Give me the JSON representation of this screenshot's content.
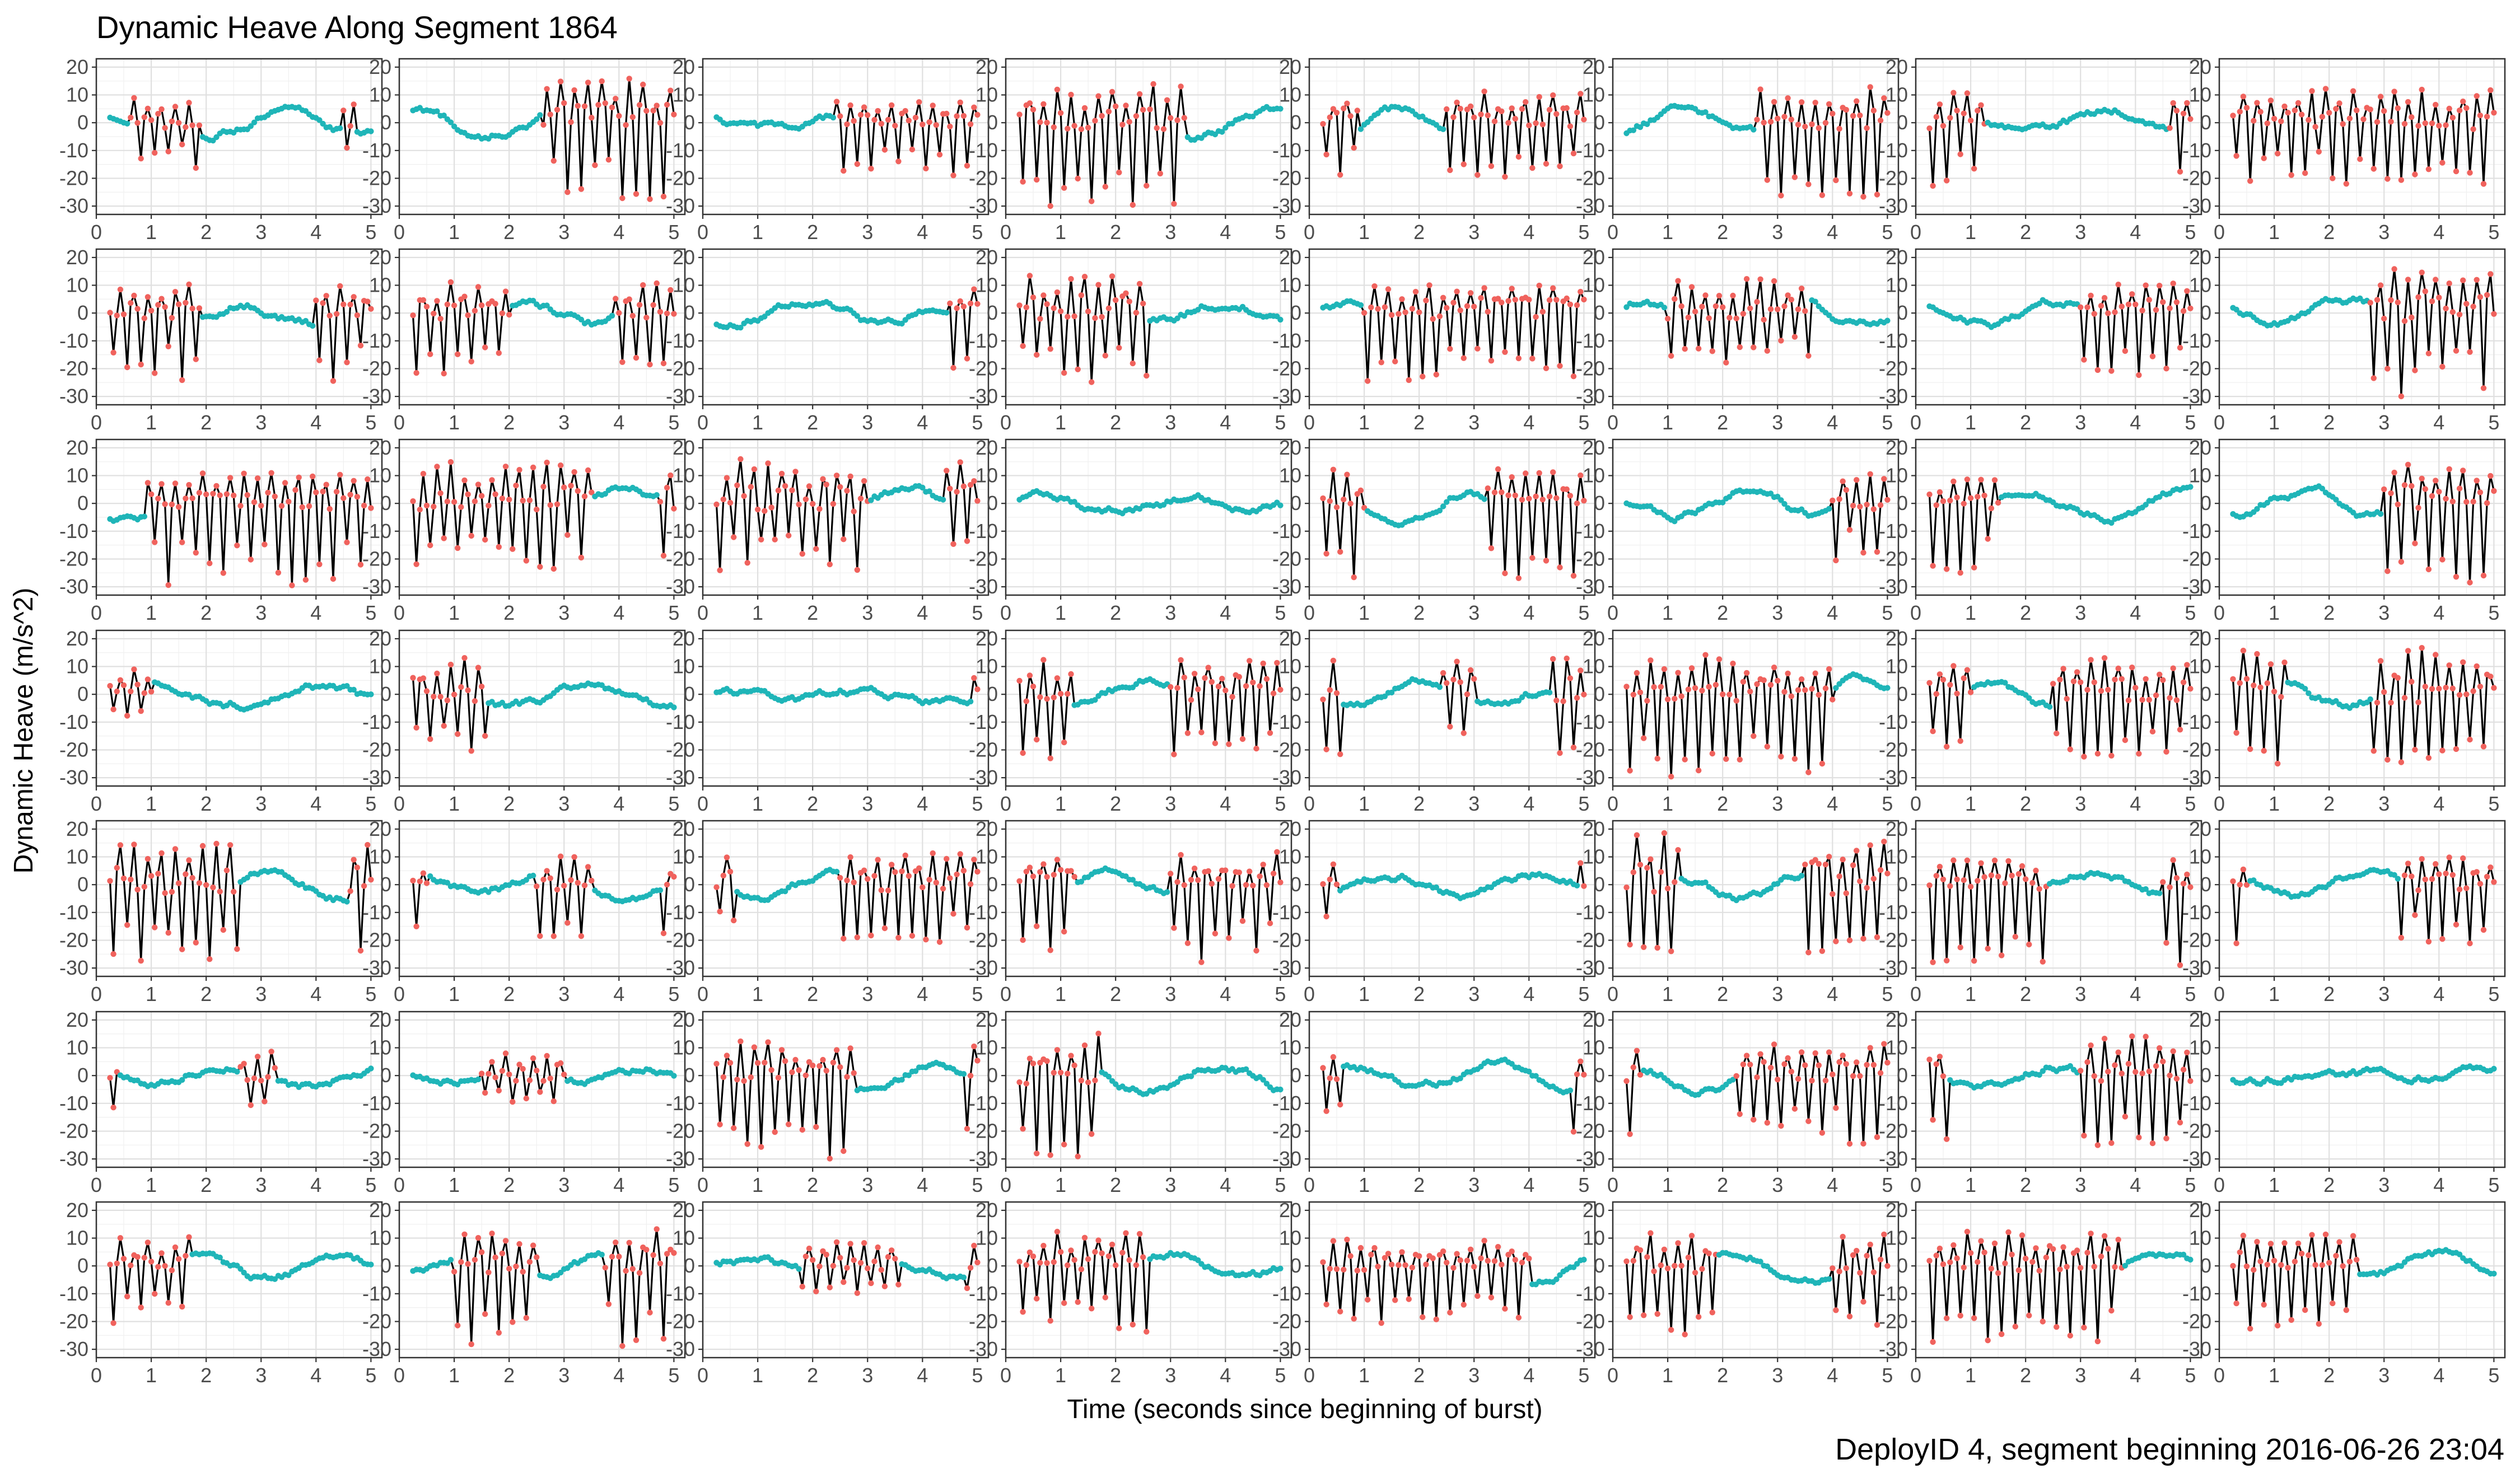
{
  "title": "Dynamic Heave Along Segment 1864",
  "caption": "DeployID 4, segment beginning 2016-06-26 23:04",
  "colors": {
    "calm": "#1fb5b8",
    "active": "#f0625d",
    "line": "#000000"
  },
  "chart_data": {
    "type": "line",
    "xlabel": "Time (seconds since beginning of burst)",
    "ylabel": "Dynamic Heave (m/s^2)",
    "xlim": [
      0,
      5.2
    ],
    "ylim": [
      -33,
      23
    ],
    "x_ticks": [
      0,
      1,
      2,
      3,
      4,
      5
    ],
    "y_ticks": [
      20,
      10,
      0,
      -10,
      -20,
      -30
    ],
    "rows": 7,
    "cols": 8,
    "grid": true,
    "point_states": [
      "calm",
      "active"
    ],
    "sample_interval_s": 0.0625,
    "t_start": 0.25,
    "t_end": 5.0,
    "panels": [
      {
        "row": 1,
        "col": 1,
        "active_intervals": [
          [
            0.6,
            1.9
          ],
          [
            4.5,
            4.7
          ]
        ],
        "min": -17,
        "max": 12
      },
      {
        "row": 1,
        "col": 2,
        "active_intervals": [
          [
            2.6,
            5.0
          ]
        ],
        "min": -28,
        "max": 17
      },
      {
        "row": 1,
        "col": 3,
        "active_intervals": [
          [
            2.4,
            5.0
          ]
        ],
        "min": -19,
        "max": 8
      },
      {
        "row": 1,
        "col": 4,
        "active_intervals": [
          [
            0.25,
            3.3
          ]
        ],
        "min": -30,
        "max": 15
      },
      {
        "row": 1,
        "col": 5,
        "active_intervals": [
          [
            0.25,
            0.9
          ],
          [
            2.5,
            5.0
          ]
        ],
        "min": -20,
        "max": 14
      },
      {
        "row": 1,
        "col": 6,
        "active_intervals": [
          [
            2.6,
            5.0
          ]
        ],
        "min": -29,
        "max": 15
      },
      {
        "row": 1,
        "col": 7,
        "active_intervals": [
          [
            0.25,
            1.3
          ],
          [
            4.6,
            5.0
          ]
        ],
        "min": -25,
        "max": 13
      },
      {
        "row": 1,
        "col": 8,
        "active_intervals": [
          [
            0.25,
            5.0
          ]
        ],
        "min": -23,
        "max": 13
      },
      {
        "row": 2,
        "col": 1,
        "active_intervals": [
          [
            0.25,
            1.9
          ],
          [
            4.0,
            5.0
          ]
        ],
        "min": -25,
        "max": 11
      },
      {
        "row": 2,
        "col": 2,
        "active_intervals": [
          [
            0.25,
            2.0
          ],
          [
            3.9,
            5.0
          ]
        ],
        "min": -25,
        "max": 12
      },
      {
        "row": 2,
        "col": 3,
        "active_intervals": [
          [
            4.5,
            5.0
          ]
        ],
        "min": -22,
        "max": 10
      },
      {
        "row": 2,
        "col": 4,
        "active_intervals": [
          [
            0.25,
            2.6
          ]
        ],
        "min": -26,
        "max": 17
      },
      {
        "row": 2,
        "col": 5,
        "active_intervals": [
          [
            1.0,
            5.0
          ]
        ],
        "min": -26,
        "max": 13
      },
      {
        "row": 2,
        "col": 6,
        "active_intervals": [
          [
            1.0,
            3.6
          ]
        ],
        "min": -18,
        "max": 14
      },
      {
        "row": 2,
        "col": 7,
        "active_intervals": [
          [
            3.0,
            5.0
          ]
        ],
        "min": -27,
        "max": 12
      },
      {
        "row": 2,
        "col": 8,
        "active_intervals": [
          [
            2.7,
            5.0
          ]
        ],
        "min": -30,
        "max": 20
      },
      {
        "row": 3,
        "col": 1,
        "active_intervals": [
          [
            0.9,
            5.0
          ]
        ],
        "min": -30,
        "max": 12
      },
      {
        "row": 3,
        "col": 2,
        "active_intervals": [
          [
            0.25,
            3.5
          ],
          [
            4.7,
            5.0
          ]
        ],
        "min": -24,
        "max": 16
      },
      {
        "row": 3,
        "col": 3,
        "active_intervals": [
          [
            0.25,
            3.0
          ],
          [
            4.4,
            5.0
          ]
        ],
        "min": -25,
        "max": 17
      },
      {
        "row": 3,
        "col": 4,
        "active_intervals": [],
        "min": -8,
        "max": 9
      },
      {
        "row": 3,
        "col": 5,
        "active_intervals": [
          [
            0.25,
            1.0
          ],
          [
            3.2,
            5.0
          ]
        ],
        "min": -29,
        "max": 13
      },
      {
        "row": 3,
        "col": 6,
        "active_intervals": [
          [
            4.0,
            5.0
          ]
        ],
        "min": -21,
        "max": 14
      },
      {
        "row": 3,
        "col": 7,
        "active_intervals": [
          [
            0.25,
            1.5
          ]
        ],
        "min": -25,
        "max": 10
      },
      {
        "row": 3,
        "col": 8,
        "active_intervals": [
          [
            3.0,
            5.0
          ]
        ],
        "min": -30,
        "max": 16
      },
      {
        "row": 4,
        "col": 1,
        "active_intervals": [
          [
            0.25,
            1.0
          ]
        ],
        "min": -12,
        "max": 10
      },
      {
        "row": 4,
        "col": 2,
        "active_intervals": [
          [
            0.25,
            1.6
          ]
        ],
        "min": -22,
        "max": 15
      },
      {
        "row": 4,
        "col": 3,
        "active_intervals": [
          [
            4.9,
            5.0
          ]
        ],
        "min": -7,
        "max": 8
      },
      {
        "row": 4,
        "col": 4,
        "active_intervals": [
          [
            0.25,
            1.2
          ],
          [
            3.0,
            5.0
          ]
        ],
        "min": -26,
        "max": 15
      },
      {
        "row": 4,
        "col": 5,
        "active_intervals": [
          [
            0.25,
            0.6
          ],
          [
            2.4,
            3.0
          ],
          [
            4.4,
            5.0
          ]
        ],
        "min": -25,
        "max": 15
      },
      {
        "row": 4,
        "col": 6,
        "active_intervals": [
          [
            0.25,
            4.0
          ]
        ],
        "min": -30,
        "max": 15
      },
      {
        "row": 4,
        "col": 7,
        "active_intervals": [
          [
            0.25,
            1.0
          ],
          [
            2.5,
            5.0
          ]
        ],
        "min": -24,
        "max": 15
      },
      {
        "row": 4,
        "col": 8,
        "active_intervals": [
          [
            0.25,
            1.2
          ],
          [
            2.8,
            5.0
          ]
        ],
        "min": -25,
        "max": 18
      },
      {
        "row": 5,
        "col": 1,
        "active_intervals": [
          [
            0.25,
            2.6
          ],
          [
            4.6,
            5.0
          ]
        ],
        "min": -30,
        "max": 17
      },
      {
        "row": 5,
        "col": 2,
        "active_intervals": [
          [
            0.25,
            0.5
          ],
          [
            2.5,
            3.5
          ],
          [
            4.8,
            5.0
          ]
        ],
        "min": -19,
        "max": 11
      },
      {
        "row": 5,
        "col": 3,
        "active_intervals": [
          [
            0.25,
            0.6
          ],
          [
            2.5,
            5.0
          ]
        ],
        "min": -21,
        "max": 12
      },
      {
        "row": 5,
        "col": 4,
        "active_intervals": [
          [
            0.25,
            1.3
          ],
          [
            3.0,
            5.0
          ]
        ],
        "min": -28,
        "max": 13
      },
      {
        "row": 5,
        "col": 5,
        "active_intervals": [
          [
            0.25,
            0.5
          ],
          [
            4.9,
            5.0
          ]
        ],
        "min": -15,
        "max": 12
      },
      {
        "row": 5,
        "col": 6,
        "active_intervals": [
          [
            0.25,
            1.2
          ],
          [
            3.5,
            5.0
          ]
        ],
        "min": -25,
        "max": 20
      },
      {
        "row": 5,
        "col": 7,
        "active_intervals": [
          [
            0.25,
            2.4
          ],
          [
            4.5,
            5.0
          ]
        ],
        "min": -30,
        "max": 10
      },
      {
        "row": 5,
        "col": 8,
        "active_intervals": [
          [
            0.25,
            0.5
          ],
          [
            3.3,
            5.0
          ]
        ],
        "min": -23,
        "max": 12
      },
      {
        "row": 6,
        "col": 1,
        "active_intervals": [
          [
            0.25,
            0.4
          ],
          [
            2.6,
            3.3
          ]
        ],
        "min": -20,
        "max": 11
      },
      {
        "row": 6,
        "col": 2,
        "active_intervals": [
          [
            1.5,
            3.0
          ]
        ],
        "min": -10,
        "max": 11
      },
      {
        "row": 6,
        "col": 3,
        "active_intervals": [
          [
            0.25,
            2.8
          ],
          [
            4.8,
            5.0
          ]
        ],
        "min": -30,
        "max": 13
      },
      {
        "row": 6,
        "col": 4,
        "active_intervals": [
          [
            0.25,
            1.7
          ]
        ],
        "min": -30,
        "max": 16
      },
      {
        "row": 6,
        "col": 5,
        "active_intervals": [
          [
            0.25,
            0.6
          ],
          [
            4.8,
            5.0
          ]
        ],
        "min": -22,
        "max": 8
      },
      {
        "row": 6,
        "col": 6,
        "active_intervals": [
          [
            0.25,
            0.5
          ],
          [
            2.2,
            5.0
          ]
        ],
        "min": -25,
        "max": 12
      },
      {
        "row": 6,
        "col": 7,
        "active_intervals": [
          [
            0.25,
            0.6
          ],
          [
            3.0,
            5.0
          ]
        ],
        "min": -31,
        "max": 15
      },
      {
        "row": 6,
        "col": 8,
        "active_intervals": [],
        "min": -5,
        "max": 5
      },
      {
        "row": 7,
        "col": 1,
        "active_intervals": [
          [
            0.25,
            1.7
          ]
        ],
        "min": -22,
        "max": 11
      },
      {
        "row": 7,
        "col": 2,
        "active_intervals": [
          [
            1.0,
            2.5
          ],
          [
            3.7,
            5.0
          ]
        ],
        "min": -29,
        "max": 14
      },
      {
        "row": 7,
        "col": 3,
        "active_intervals": [
          [
            1.8,
            3.6
          ],
          [
            4.8,
            5.0
          ]
        ],
        "min": -10,
        "max": 10
      },
      {
        "row": 7,
        "col": 4,
        "active_intervals": [
          [
            0.25,
            2.6
          ]
        ],
        "min": -24,
        "max": 13
      },
      {
        "row": 7,
        "col": 5,
        "active_intervals": [
          [
            0.25,
            4.0
          ]
        ],
        "min": -23,
        "max": 10
      },
      {
        "row": 7,
        "col": 6,
        "active_intervals": [
          [
            0.25,
            1.9
          ],
          [
            4.0,
            5.0
          ]
        ],
        "min": -25,
        "max": 14
      },
      {
        "row": 7,
        "col": 7,
        "active_intervals": [
          [
            0.25,
            3.8
          ]
        ],
        "min": -29,
        "max": 15
      },
      {
        "row": 7,
        "col": 8,
        "active_intervals": [
          [
            0.25,
            2.5
          ]
        ],
        "min": -25,
        "max": 12
      }
    ]
  }
}
